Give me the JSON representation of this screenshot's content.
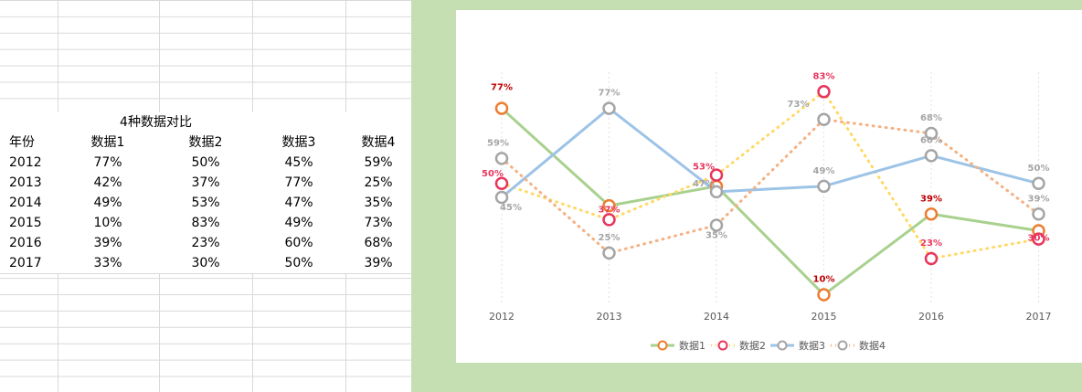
{
  "table": {
    "title": "4种数据对比",
    "headers": [
      "年份",
      "数据1",
      "数据2",
      "数据3",
      "数据4"
    ],
    "rows": [
      [
        "2012",
        "77%",
        "50%",
        "45%",
        "59%"
      ],
      [
        "2013",
        "42%",
        "37%",
        "77%",
        "25%"
      ],
      [
        "2014",
        "49%",
        "53%",
        "47%",
        "35%"
      ],
      [
        "2015",
        "10%",
        "83%",
        "49%",
        "73%"
      ],
      [
        "2016",
        "39%",
        "23%",
        "60%",
        "68%"
      ],
      [
        "2017",
        "33%",
        "30%",
        "50%",
        "39%"
      ]
    ]
  },
  "chart_data": {
    "type": "line",
    "title": "",
    "xlabel": "",
    "ylabel": "",
    "x": [
      "2012",
      "2013",
      "2014",
      "2015",
      "2016",
      "2017"
    ],
    "ylim": [
      0,
      100
    ],
    "grid": "vertical dotted",
    "legend": "bottom",
    "series": [
      {
        "name": "数据1",
        "values": [
          77,
          42,
          49,
          10,
          39,
          33
        ],
        "line_color": "#a9d18e",
        "marker_color": "#ed7d31",
        "label_color": "#c00000",
        "dashed": false,
        "show_labels": [
          true,
          false,
          false,
          true,
          true,
          false
        ]
      },
      {
        "name": "数据2",
        "values": [
          50,
          37,
          53,
          83,
          23,
          30
        ],
        "line_color": "#ffd966",
        "marker_color": "#e8365d",
        "label_color": "#e8365d",
        "dashed": true,
        "show_labels": [
          true,
          true,
          true,
          true,
          true,
          true
        ]
      },
      {
        "name": "数据3",
        "values": [
          45,
          77,
          47,
          49,
          60,
          50
        ],
        "line_color": "#9dc3e6",
        "marker_color": "#a5a5a5",
        "label_color": "#a5a5a5",
        "dashed": false,
        "show_labels": [
          true,
          true,
          true,
          true,
          true,
          true
        ]
      },
      {
        "name": "数据4",
        "values": [
          59,
          25,
          35,
          73,
          68,
          39
        ],
        "line_color": "#f4b183",
        "marker_color": "#a5a5a5",
        "label_color": "#a5a5a5",
        "dashed": true,
        "show_labels": [
          true,
          true,
          true,
          true,
          true,
          true
        ]
      }
    ]
  }
}
